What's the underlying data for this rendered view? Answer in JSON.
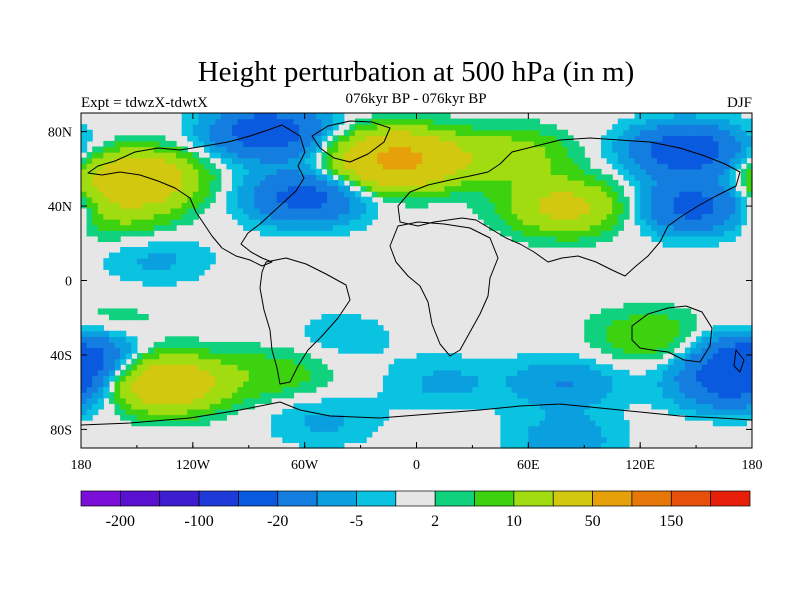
{
  "chart_data": {
    "type": "heatmap",
    "title": "Height perturbation at 500 hPa (in m)",
    "subtitle": "076kyr BP - 076kyr BP",
    "left_label": "Expt = tdwzX-tdwtX",
    "right_label": "DJF",
    "x_range": [
      -180,
      180
    ],
    "y_range": [
      -90,
      90
    ],
    "x_ticks": [
      {
        "value": -180,
        "label": "180"
      },
      {
        "value": -120,
        "label": "120W"
      },
      {
        "value": -60,
        "label": "60W"
      },
      {
        "value": 0,
        "label": "0"
      },
      {
        "value": 60,
        "label": "60E"
      },
      {
        "value": 120,
        "label": "120E"
      },
      {
        "value": 180,
        "label": "180"
      }
    ],
    "y_ticks": [
      {
        "value": 80,
        "label": "80N"
      },
      {
        "value": 40,
        "label": "40N"
      },
      {
        "value": 0,
        "label": "0"
      },
      {
        "value": -40,
        "label": "40S"
      },
      {
        "value": -80,
        "label": "80S"
      }
    ],
    "colorbar": {
      "colors": [
        "#7a10d8",
        "#5a10d0",
        "#3c1ed0",
        "#1e3ad8",
        "#0a5ae0",
        "#147ee0",
        "#0aa0e0",
        "#0ac3e0",
        "#e6e6e6",
        "#10d27e",
        "#3cd210",
        "#a0dc10",
        "#d2c810",
        "#e6a00a",
        "#e6780a",
        "#e6500a",
        "#e61e0a"
      ],
      "tick_labels": [
        {
          "boundary": 1,
          "label": "-200"
        },
        {
          "boundary": 3,
          "label": "-100"
        },
        {
          "boundary": 5,
          "label": "-20"
        },
        {
          "boundary": 7,
          "label": "-5"
        },
        {
          "boundary": 9,
          "label": "2"
        },
        {
          "boundary": 11,
          "label": "10"
        },
        {
          "boundary": 13,
          "label": "50"
        },
        {
          "boundary": 15,
          "label": "150"
        }
      ]
    },
    "anomaly_features": [
      {
        "lon": -150,
        "lat": 55,
        "value": 40
      },
      {
        "lon": -160,
        "lat": 35,
        "value": 10
      },
      {
        "lon": -140,
        "lat": 12,
        "value": -6
      },
      {
        "lon": -80,
        "lat": 80,
        "value": -30
      },
      {
        "lon": -60,
        "lat": 45,
        "value": -25
      },
      {
        "lon": -10,
        "lat": 65,
        "value": 60
      },
      {
        "lon": 50,
        "lat": 67,
        "value": 15
      },
      {
        "lon": 80,
        "lat": 40,
        "value": 25
      },
      {
        "lon": 145,
        "lat": 70,
        "value": -30
      },
      {
        "lon": 150,
        "lat": 40,
        "value": -25
      },
      {
        "lon": -135,
        "lat": -55,
        "value": 40
      },
      {
        "lon": -165,
        "lat": -25,
        "value": 5
      },
      {
        "lon": -75,
        "lat": -50,
        "value": 8
      },
      {
        "lon": -40,
        "lat": -30,
        "value": -4
      },
      {
        "lon": 15,
        "lat": -55,
        "value": -6
      },
      {
        "lon": 80,
        "lat": -55,
        "value": -10
      },
      {
        "lon": 125,
        "lat": -30,
        "value": 10
      },
      {
        "lon": 170,
        "lat": -55,
        "value": -25
      },
      {
        "lon": -180,
        "lat": -40,
        "value": -25
      },
      {
        "lon": -50,
        "lat": -75,
        "value": -6
      },
      {
        "lon": 80,
        "lat": -85,
        "value": -8
      }
    ]
  }
}
